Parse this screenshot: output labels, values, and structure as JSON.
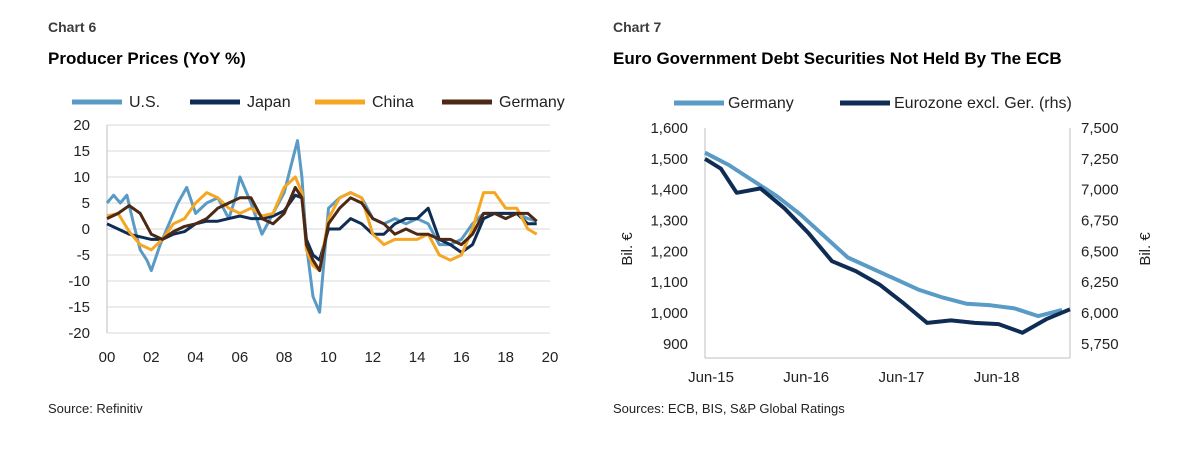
{
  "chart_data": [
    {
      "type": "line",
      "number": "Chart 6",
      "title": "Producer Prices (YoY %)",
      "source": "Source: Refinitiv",
      "xlabel": "",
      "ylabel": "",
      "x_ticks": [
        "00",
        "02",
        "04",
        "06",
        "08",
        "10",
        "12",
        "14",
        "16",
        "18",
        "20"
      ],
      "x_tick_values": [
        2000,
        2002,
        2004,
        2006,
        2008,
        2010,
        2012,
        2014,
        2016,
        2018,
        2020
      ],
      "xlim": [
        2000,
        2020
      ],
      "y_ticks": [
        "20",
        "15",
        "10",
        "5",
        "0",
        "-5",
        "-10",
        "-15",
        "-20"
      ],
      "y_tick_values": [
        20,
        15,
        10,
        5,
        0,
        -5,
        -10,
        -15,
        -20
      ],
      "ylim": [
        -20,
        20
      ],
      "grid": "horizontal",
      "legend": "top",
      "series": [
        {
          "name": "U.S.",
          "color": "#5a9bc6",
          "x": [
            2000,
            2000.3,
            2000.6,
            2000.9,
            2001.2,
            2001.5,
            2001.8,
            2002,
            2002.4,
            2002.8,
            2003.2,
            2003.6,
            2004,
            2004.5,
            2005,
            2005.5,
            2005.8,
            2006,
            2006.5,
            2007,
            2007.5,
            2008,
            2008.3,
            2008.6,
            2008.8,
            2009,
            2009.3,
            2009.6,
            2010,
            2010.5,
            2011,
            2011.5,
            2012,
            2012.5,
            2013,
            2013.5,
            2014,
            2014.5,
            2015,
            2015.5,
            2016,
            2016.5,
            2017,
            2017.5,
            2018,
            2018.5,
            2019,
            2019.4
          ],
          "y": [
            5,
            6.5,
            5,
            6.5,
            1,
            -4,
            -6,
            -8,
            -3,
            1,
            5,
            8,
            3,
            5,
            6,
            2,
            6,
            10,
            5,
            -1,
            3,
            7,
            12,
            17,
            10,
            -3,
            -13,
            -16,
            4,
            6,
            7,
            6,
            2,
            1,
            2,
            1,
            2,
            1,
            -3,
            -3,
            -2,
            1,
            3,
            3,
            3,
            3,
            2,
            1.5
          ]
        },
        {
          "name": "Japan",
          "color": "#0f2d54",
          "x": [
            2000,
            2000.5,
            2001,
            2001.5,
            2002,
            2002.5,
            2003,
            2003.5,
            2004,
            2004.5,
            2005,
            2005.5,
            2006,
            2006.5,
            2007,
            2007.5,
            2008,
            2008.5,
            2008.8,
            2009,
            2009.3,
            2009.6,
            2010,
            2010.5,
            2011,
            2011.5,
            2012,
            2012.5,
            2013,
            2013.5,
            2014,
            2014.5,
            2015,
            2015.5,
            2016,
            2016.5,
            2017,
            2017.5,
            2018,
            2018.5,
            2019,
            2019.4
          ],
          "y": [
            1,
            0,
            -1,
            -1.5,
            -2,
            -2,
            -1,
            -0.5,
            1,
            1.5,
            1.5,
            2,
            2.5,
            2,
            2,
            2.5,
            3.5,
            6.5,
            6,
            -2,
            -5,
            -6,
            0,
            0,
            2,
            1,
            -1,
            -1,
            1,
            2,
            2,
            4,
            -2,
            -3,
            -4.5,
            -3,
            2,
            3,
            3,
            3,
            1,
            1
          ]
        },
        {
          "name": "China",
          "color": "#f5a623",
          "x": [
            2000,
            2000.5,
            2001,
            2001.5,
            2002,
            2002.5,
            2003,
            2003.5,
            2004,
            2004.5,
            2005,
            2005.5,
            2006,
            2006.5,
            2007,
            2007.5,
            2008,
            2008.5,
            2008.8,
            2009,
            2009.3,
            2009.6,
            2010,
            2010.5,
            2011,
            2011.5,
            2012,
            2012.5,
            2013,
            2013.5,
            2014,
            2014.5,
            2015,
            2015.5,
            2016,
            2016.5,
            2017,
            2017.5,
            2018,
            2018.5,
            2019,
            2019.4
          ],
          "y": [
            2.5,
            3,
            -0.5,
            -3,
            -4,
            -2,
            1,
            2,
            5,
            7,
            6,
            4,
            3,
            4,
            2.5,
            3,
            8,
            10,
            7,
            -4,
            -7,
            -8,
            2,
            6,
            7,
            6,
            -1,
            -3,
            -2,
            -2,
            -2,
            -1,
            -5,
            -6,
            -5,
            0,
            7,
            7,
            4,
            4,
            0,
            -1
          ]
        },
        {
          "name": "Germany",
          "color": "#4d2815",
          "x": [
            2000,
            2000.5,
            2001,
            2001.5,
            2002,
            2002.5,
            2003,
            2003.5,
            2004,
            2004.5,
            2005,
            2005.5,
            2006,
            2006.5,
            2007,
            2007.5,
            2008,
            2008.5,
            2008.8,
            2009,
            2009.3,
            2009.6,
            2010,
            2010.5,
            2011,
            2011.5,
            2012,
            2012.5,
            2013,
            2013.5,
            2014,
            2014.5,
            2015,
            2015.5,
            2016,
            2016.5,
            2017,
            2017.5,
            2018,
            2018.5,
            2019,
            2019.4
          ],
          "y": [
            2,
            3,
            4.5,
            3,
            -1,
            -2,
            -0.5,
            0.5,
            1,
            2,
            4,
            5,
            6,
            6,
            2,
            1,
            3,
            8,
            6,
            -3,
            -6,
            -8,
            1,
            4,
            6,
            5,
            2,
            1,
            -1,
            0,
            -1,
            -1,
            -2,
            -2,
            -3,
            -1,
            3,
            3,
            2,
            3,
            3,
            1.5
          ]
        }
      ]
    },
    {
      "type": "line",
      "number": "Chart 7",
      "title": "Euro Government Debt Securities Not Held By The ECB",
      "source": "Sources: ECB, BIS, S&P Global Ratings",
      "xlabel": "",
      "ylabel": "Bil. €",
      "y2label": "Bil. €",
      "x_ticks": [
        "Jun-15",
        "Jun-16",
        "Jun-17",
        "Jun-18"
      ],
      "x_tick_values": [
        0,
        12,
        24,
        36
      ],
      "xlim": [
        0,
        46
      ],
      "y_ticks": [
        "1,600",
        "1,500",
        "1,400",
        "1,300",
        "1,200",
        "1,100",
        "1,000",
        "900"
      ],
      "y_tick_values": [
        1600,
        1500,
        1400,
        1300,
        1200,
        1100,
        1000,
        900
      ],
      "ylim": [
        880,
        1600
      ],
      "y2_ticks": [
        "7,500",
        "7,250",
        "7,000",
        "6,750",
        "6,500",
        "6,250",
        "6,000",
        "5,750"
      ],
      "y2_tick_values": [
        7500,
        7250,
        7000,
        6750,
        6500,
        6250,
        6000,
        5750
      ],
      "y2lim": [
        5700,
        7500
      ],
      "grid": "off",
      "legend": "top",
      "series": [
        {
          "name": "Germany",
          "axis": "left",
          "color": "#5a9bc6",
          "x": [
            0,
            3,
            6,
            9,
            12,
            15,
            18,
            21,
            24,
            27,
            30,
            33,
            36,
            39,
            42,
            45
          ],
          "y": [
            1520,
            1480,
            1430,
            1380,
            1320,
            1250,
            1180,
            1145,
            1110,
            1075,
            1050,
            1030,
            1025,
            1015,
            990,
            1010
          ]
        },
        {
          "name": "Eurozone excl. Ger. (rhs)",
          "axis": "right",
          "color": "#0f2d54",
          "x": [
            0,
            2,
            4,
            7,
            10,
            13,
            16,
            19,
            22,
            25,
            28,
            31,
            34,
            37,
            40,
            43,
            46
          ],
          "y": [
            7250,
            7170,
            6975,
            7010,
            6850,
            6650,
            6420,
            6340,
            6230,
            6080,
            5920,
            5940,
            5920,
            5910,
            5840,
            5950,
            6030
          ]
        }
      ]
    }
  ],
  "colors": {
    "us": "#5a9bc6",
    "japan": "#0f2d54",
    "china": "#f5a623",
    "germany": "#4d2815"
  }
}
